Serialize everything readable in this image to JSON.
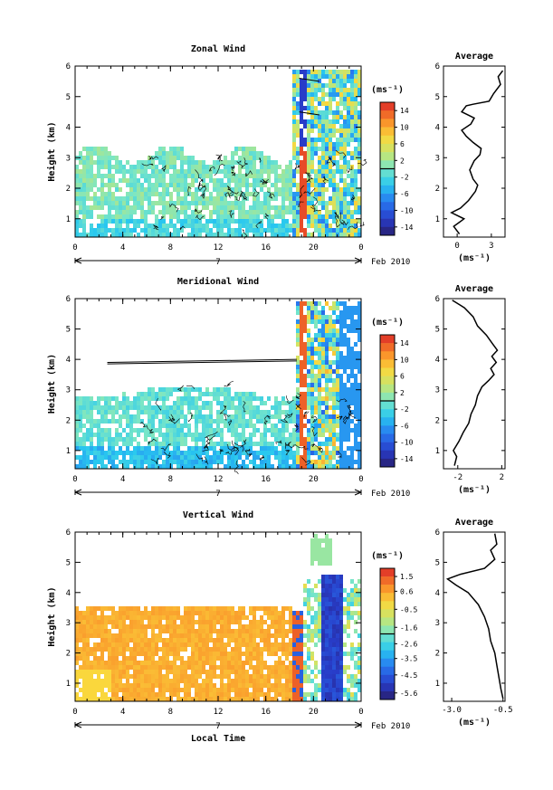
{
  "chart_data": [
    {
      "type": "heatmap",
      "title": "Zonal Wind",
      "ylabel": "Height (km)",
      "yticks": [
        "1",
        "2",
        "3",
        "4",
        "5",
        "6"
      ],
      "ylim": [
        0.4,
        6
      ],
      "xticks": [
        "0",
        "4",
        "8",
        "12",
        "16",
        "20",
        "0"
      ],
      "xlim": [
        0,
        24
      ],
      "date_label": "7",
      "month_label": "Feb 2010",
      "units": "(ms⁻¹)",
      "colorbar": {
        "ticks": [
          "14",
          "10",
          "6",
          "2",
          "-2",
          "-6",
          "-10",
          "-14"
        ],
        "range": [
          -16,
          16
        ]
      },
      "profile": {
        "title": "Average",
        "xlim": [
          -1.2,
          4.2
        ],
        "xticks": [
          "0",
          "3"
        ],
        "xlabel": "(ms⁻¹)",
        "points": [
          [
            0.2,
            0.5
          ],
          [
            -0.3,
            0.75
          ],
          [
            0.6,
            1.0
          ],
          [
            -0.5,
            1.2
          ],
          [
            0.3,
            1.35
          ],
          [
            1.0,
            1.6
          ],
          [
            1.6,
            1.9
          ],
          [
            1.8,
            2.1
          ],
          [
            1.4,
            2.3
          ],
          [
            1.1,
            2.6
          ],
          [
            1.5,
            2.9
          ],
          [
            2.0,
            3.1
          ],
          [
            2.1,
            3.3
          ],
          [
            1.4,
            3.5
          ],
          [
            0.8,
            3.7
          ],
          [
            0.4,
            3.9
          ],
          [
            1.2,
            4.1
          ],
          [
            1.5,
            4.3
          ],
          [
            0.4,
            4.5
          ],
          [
            0.8,
            4.7
          ],
          [
            1.4,
            4.75
          ],
          [
            2.8,
            4.85
          ],
          [
            3.2,
            5.1
          ],
          [
            3.8,
            5.4
          ],
          [
            3.6,
            5.65
          ],
          [
            4.0,
            5.85
          ]
        ]
      }
    },
    {
      "type": "heatmap",
      "title": "Meridional Wind",
      "ylabel": "Height (km)",
      "yticks": [
        "1",
        "2",
        "3",
        "4",
        "5",
        "6"
      ],
      "ylim": [
        0.4,
        6
      ],
      "xticks": [
        "0",
        "4",
        "8",
        "12",
        "16",
        "20",
        "0"
      ],
      "xlim": [
        0,
        24
      ],
      "date_label": "7",
      "month_label": "Feb 2010",
      "units": "(ms⁻¹)",
      "colorbar": {
        "ticks": [
          "14",
          "10",
          "6",
          "2",
          "-2",
          "-6",
          "-10",
          "-14"
        ],
        "range": [
          -16,
          16
        ]
      },
      "profile": {
        "title": "Average",
        "xlim": [
          -3.3,
          2.3
        ],
        "xticks": [
          "-2",
          "2"
        ],
        "xlabel": "(ms⁻¹)",
        "points": [
          [
            -2.3,
            0.5
          ],
          [
            -2.1,
            0.8
          ],
          [
            -2.4,
            1.0
          ],
          [
            -1.9,
            1.3
          ],
          [
            -1.5,
            1.6
          ],
          [
            -1.0,
            1.9
          ],
          [
            -0.8,
            2.2
          ],
          [
            -0.4,
            2.5
          ],
          [
            -0.2,
            2.8
          ],
          [
            0.2,
            3.1
          ],
          [
            0.8,
            3.3
          ],
          [
            1.3,
            3.5
          ],
          [
            1.0,
            3.7
          ],
          [
            1.5,
            3.9
          ],
          [
            1.1,
            4.1
          ],
          [
            1.6,
            4.3
          ],
          [
            1.2,
            4.5
          ],
          [
            0.6,
            4.8
          ],
          [
            -0.2,
            5.1
          ],
          [
            -0.6,
            5.4
          ],
          [
            -1.4,
            5.7
          ],
          [
            -2.5,
            5.95
          ]
        ]
      }
    },
    {
      "type": "heatmap",
      "title": "Vertical Wind",
      "ylabel": "Height (km)",
      "yticks": [
        "1",
        "2",
        "3",
        "4",
        "5",
        "6"
      ],
      "ylim": [
        0.4,
        6
      ],
      "xticks": [
        "0",
        "4",
        "8",
        "12",
        "16",
        "20",
        "0"
      ],
      "xlim": [
        0,
        24
      ],
      "date_label": "7",
      "month_label": "Feb 2010",
      "xlabel": "Local Time",
      "units": "(ms⁻¹)",
      "colorbar": {
        "ticks": [
          "1.5",
          "0.6",
          "-0.5",
          "-1.6",
          "-2.6",
          "-3.5",
          "-4.5",
          "-5.6"
        ],
        "range": [
          -6,
          2
        ]
      },
      "profile": {
        "title": "Average",
        "xlim": [
          -3.4,
          -0.4
        ],
        "xticks": [
          "-3.0",
          "-0.5"
        ],
        "xlabel": "(ms⁻¹)",
        "points": [
          [
            -0.5,
            0.5
          ],
          [
            -0.6,
            0.8
          ],
          [
            -0.7,
            1.2
          ],
          [
            -0.8,
            1.6
          ],
          [
            -0.9,
            2.0
          ],
          [
            -1.1,
            2.4
          ],
          [
            -1.2,
            2.8
          ],
          [
            -1.4,
            3.2
          ],
          [
            -1.7,
            3.6
          ],
          [
            -2.2,
            4.0
          ],
          [
            -2.8,
            4.25
          ],
          [
            -3.2,
            4.45
          ],
          [
            -2.6,
            4.6
          ],
          [
            -1.4,
            4.8
          ],
          [
            -0.9,
            5.1
          ],
          [
            -1.1,
            5.4
          ],
          [
            -0.8,
            5.6
          ],
          [
            -0.9,
            5.95
          ]
        ]
      }
    }
  ]
}
